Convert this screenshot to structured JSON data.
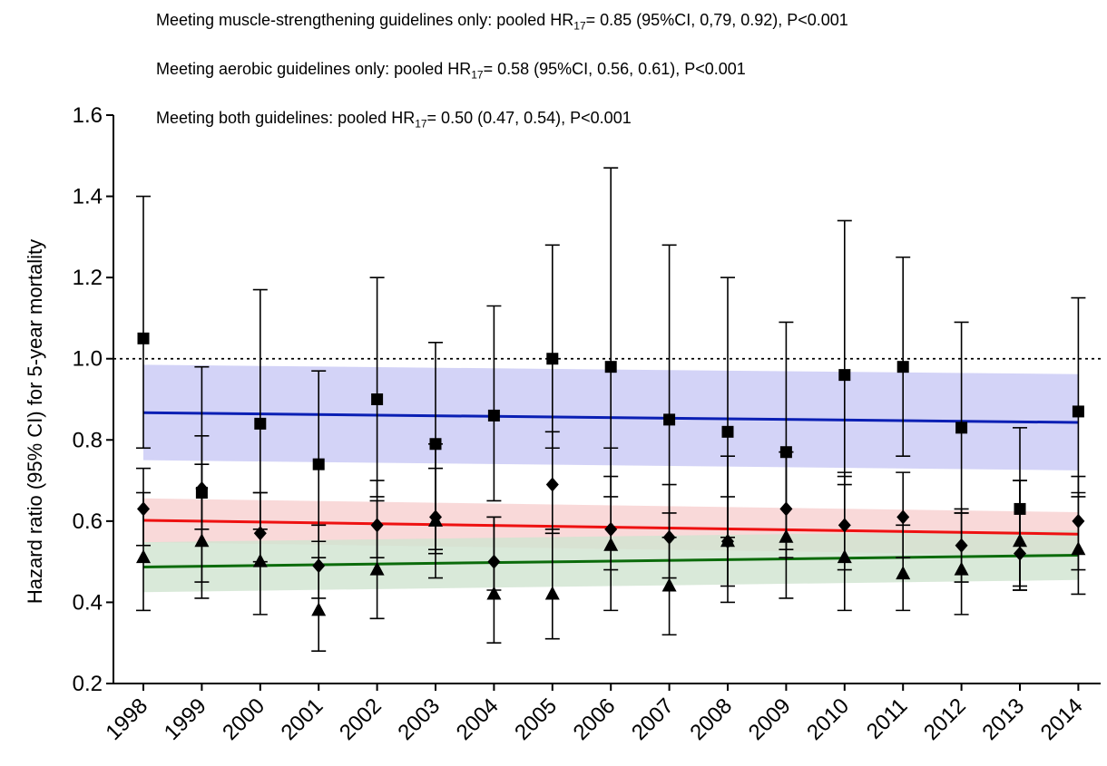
{
  "annotations": [
    {
      "pre": "Meeting muscle-strengthening guidelines only: pooled HR",
      "sub": "17",
      "post": "= 0.85 (95%CI, 0,79, 0.92), P<0.001"
    },
    {
      "pre": "Meeting aerobic guidelines only: pooled HR",
      "sub": "17",
      "post": "= 0.58 (95%CI, 0.56, 0.61), P<0.001"
    },
    {
      "pre": "Meeting both guidelines: pooled HR",
      "sub": "17",
      "post": "= 0.50 (0.47, 0.54), P<0.001"
    }
  ],
  "chart_data": {
    "type": "scatter",
    "xlabel": "",
    "ylabel": "Hazard ratio (95% CI) for 5-year mortality",
    "ylim": [
      0.2,
      1.6
    ],
    "yticks": [
      "0.2",
      "0.4",
      "0.6",
      "0.8",
      "1.0",
      "1.2",
      "1.4",
      "1.6"
    ],
    "categories": [
      "1998",
      "1999",
      "2000",
      "2001",
      "2002",
      "2003",
      "2004",
      "2005",
      "2006",
      "2007",
      "2008",
      "2009",
      "2010",
      "2011",
      "2012",
      "2013",
      "2014"
    ],
    "reference_line": 1.0,
    "series": [
      {
        "marker": "square",
        "color": "#000000",
        "values": [
          1.05,
          0.67,
          0.84,
          0.74,
          0.9,
          0.79,
          0.86,
          1.0,
          0.98,
          0.85,
          0.82,
          0.77,
          0.96,
          0.98,
          0.83,
          0.63,
          0.87
        ],
        "lower": [
          0.78,
          0.45,
          0.58,
          0.55,
          0.66,
          0.52,
          0.65,
          0.78,
          0.66,
          0.56,
          0.56,
          0.53,
          0.69,
          0.76,
          0.62,
          0.43,
          0.66
        ],
        "upper": [
          1.4,
          0.98,
          1.17,
          0.97,
          1.2,
          1.04,
          1.13,
          1.28,
          1.47,
          1.28,
          1.2,
          1.09,
          1.34,
          1.25,
          1.09,
          0.83,
          1.15
        ],
        "trend": {
          "color": "#0a1fb4",
          "band": "#c8c8f5",
          "start": 0.867,
          "end": 0.843,
          "band_start": [
            0.75,
            0.985
          ],
          "band_end": [
            0.725,
            0.962
          ]
        }
      },
      {
        "marker": "diamond",
        "color": "#000000",
        "values": [
          0.63,
          0.68,
          0.57,
          0.49,
          0.59,
          0.61,
          0.5,
          0.69,
          0.58,
          0.56,
          0.55,
          0.63,
          0.59,
          0.61,
          0.54,
          0.52,
          0.6
        ],
        "lower": [
          0.54,
          0.58,
          0.5,
          0.41,
          0.51,
          0.53,
          0.43,
          0.57,
          0.48,
          0.46,
          0.44,
          0.51,
          0.48,
          0.51,
          0.45,
          0.44,
          0.48
        ],
        "upper": [
          0.73,
          0.81,
          0.67,
          0.59,
          0.7,
          0.73,
          0.61,
          0.82,
          0.71,
          0.69,
          0.66,
          0.77,
          0.72,
          0.72,
          0.63,
          0.7,
          0.71
        ],
        "trend": {
          "color": "#ee1111",
          "band": "#f8d0d0",
          "start": 0.602,
          "end": 0.568,
          "band_start": [
            0.548,
            0.656
          ],
          "band_end": [
            0.515,
            0.622
          ]
        }
      },
      {
        "marker": "triangle",
        "color": "#000000",
        "values": [
          0.51,
          0.55,
          0.5,
          0.38,
          0.48,
          0.6,
          0.42,
          0.42,
          0.54,
          0.44,
          0.55,
          0.56,
          0.51,
          0.47,
          0.48,
          0.55,
          0.53
        ],
        "lower": [
          0.38,
          0.41,
          0.37,
          0.28,
          0.36,
          0.46,
          0.3,
          0.31,
          0.38,
          0.32,
          0.4,
          0.41,
          0.38,
          0.38,
          0.37,
          0.43,
          0.42
        ],
        "upper": [
          0.67,
          0.74,
          0.67,
          0.51,
          0.65,
          0.79,
          0.61,
          0.58,
          0.78,
          0.62,
          0.76,
          0.77,
          0.71,
          0.59,
          0.62,
          0.7,
          0.67
        ],
        "trend": {
          "color": "#0b6b0b",
          "band": "#cfe3cf",
          "start": 0.487,
          "end": 0.516,
          "band_start": [
            0.425,
            0.548
          ],
          "band_end": [
            0.455,
            0.577
          ]
        }
      }
    ]
  }
}
